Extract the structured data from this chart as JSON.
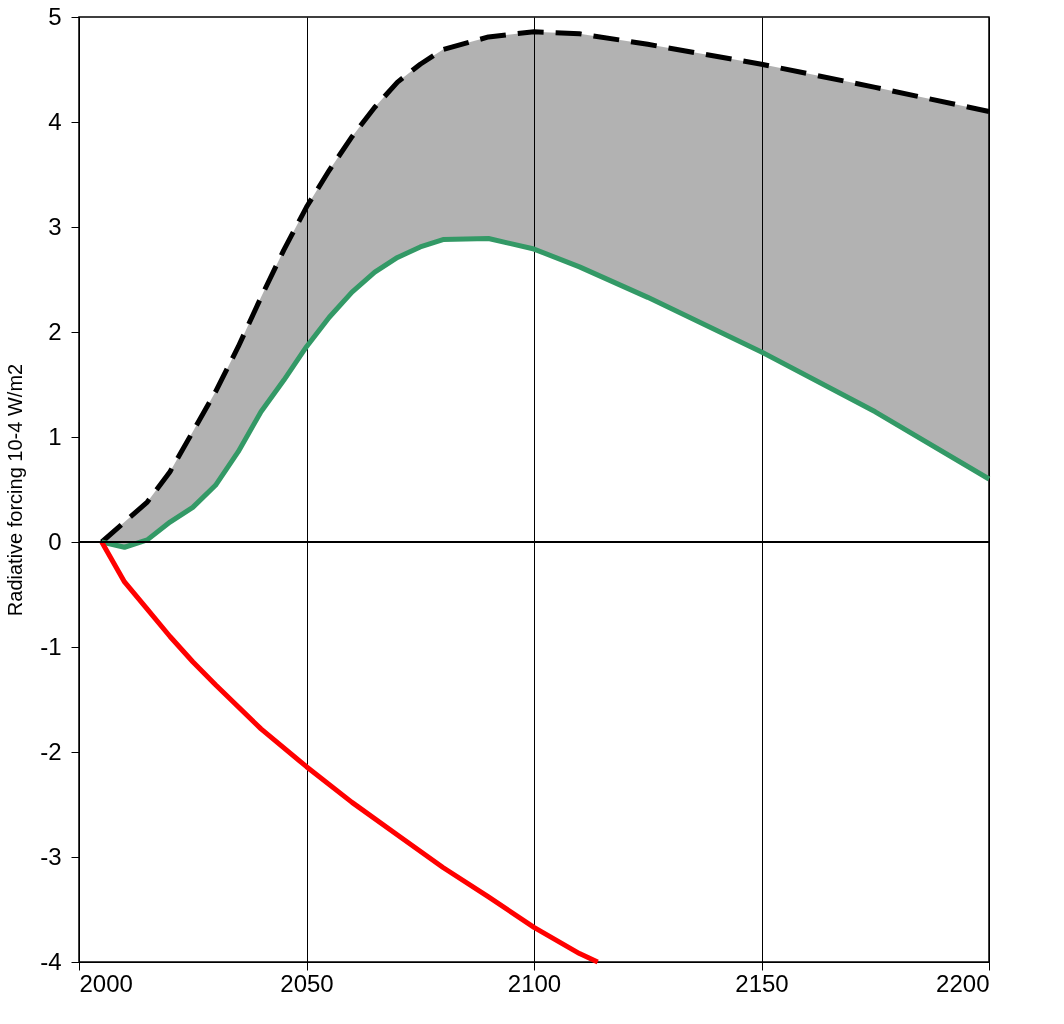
{
  "chart_data": {
    "type": "line",
    "ylabel": "Radiative forcing 10-4 W/m2",
    "xlim": [
      2000,
      2200
    ],
    "xticks": [
      2000,
      2050,
      2100,
      2150,
      2200
    ],
    "ylim": [
      -4,
      5
    ],
    "yticks": [
      -4,
      -3,
      -2,
      -1,
      0,
      1,
      2,
      3,
      4,
      5
    ],
    "grid": "x",
    "x": [
      2005,
      2010,
      2015,
      2020,
      2025,
      2030,
      2035,
      2040,
      2045,
      2050,
      2055,
      2060,
      2065,
      2070,
      2075,
      2080,
      2090,
      2100,
      2110,
      2125,
      2150,
      2175,
      2200
    ],
    "series": [
      {
        "color": "#000000",
        "line_style": "dashed",
        "values": [
          0,
          0.19,
          0.38,
          0.67,
          1.05,
          1.43,
          1.86,
          2.33,
          2.78,
          3.19,
          3.54,
          3.86,
          4.14,
          4.38,
          4.55,
          4.69,
          4.81,
          4.86,
          4.84,
          4.74,
          4.55,
          4.33,
          4.1
        ],
        "lower": [
          0,
          -0.05,
          0.02,
          0.19,
          0.33,
          0.54,
          0.86,
          1.24,
          1.54,
          1.86,
          2.14,
          2.38,
          2.57,
          2.71,
          2.81,
          2.88,
          2.89,
          2.79,
          2.62,
          2.33,
          1.81,
          1.24,
          0.6
        ],
        "upper": [
          0,
          0.19,
          0.38,
          0.67,
          1.05,
          1.43,
          1.86,
          2.33,
          2.78,
          3.19,
          3.54,
          3.86,
          4.14,
          4.38,
          4.55,
          4.69,
          4.81,
          4.86,
          4.84,
          4.74,
          4.55,
          4.33,
          4.1
        ]
      },
      {
        "color": "#339966",
        "line_style": "solid",
        "values": [
          0,
          -0.05,
          0.02,
          0.19,
          0.33,
          0.54,
          0.86,
          1.24,
          1.54,
          1.86,
          2.14,
          2.38,
          2.57,
          2.71,
          2.81,
          2.88,
          2.89,
          2.79,
          2.62,
          2.33,
          1.81,
          1.24,
          0.6
        ]
      },
      {
        "color": "#ff0000",
        "line_style": "solid",
        "x": [
          2005,
          2010,
          2015,
          2020,
          2025,
          2030,
          2040,
          2050,
          2060,
          2070,
          2080,
          2090,
          2100,
          2110,
          2114
        ],
        "values": [
          0,
          -0.38,
          -0.64,
          -0.9,
          -1.14,
          -1.36,
          -1.78,
          -2.14,
          -2.48,
          -2.79,
          -3.1,
          -3.38,
          -3.67,
          -3.92,
          -4.0
        ]
      }
    ],
    "ref_lines": [
      {
        "axis": "y",
        "value": 0,
        "color": "#000000"
      }
    ]
  }
}
